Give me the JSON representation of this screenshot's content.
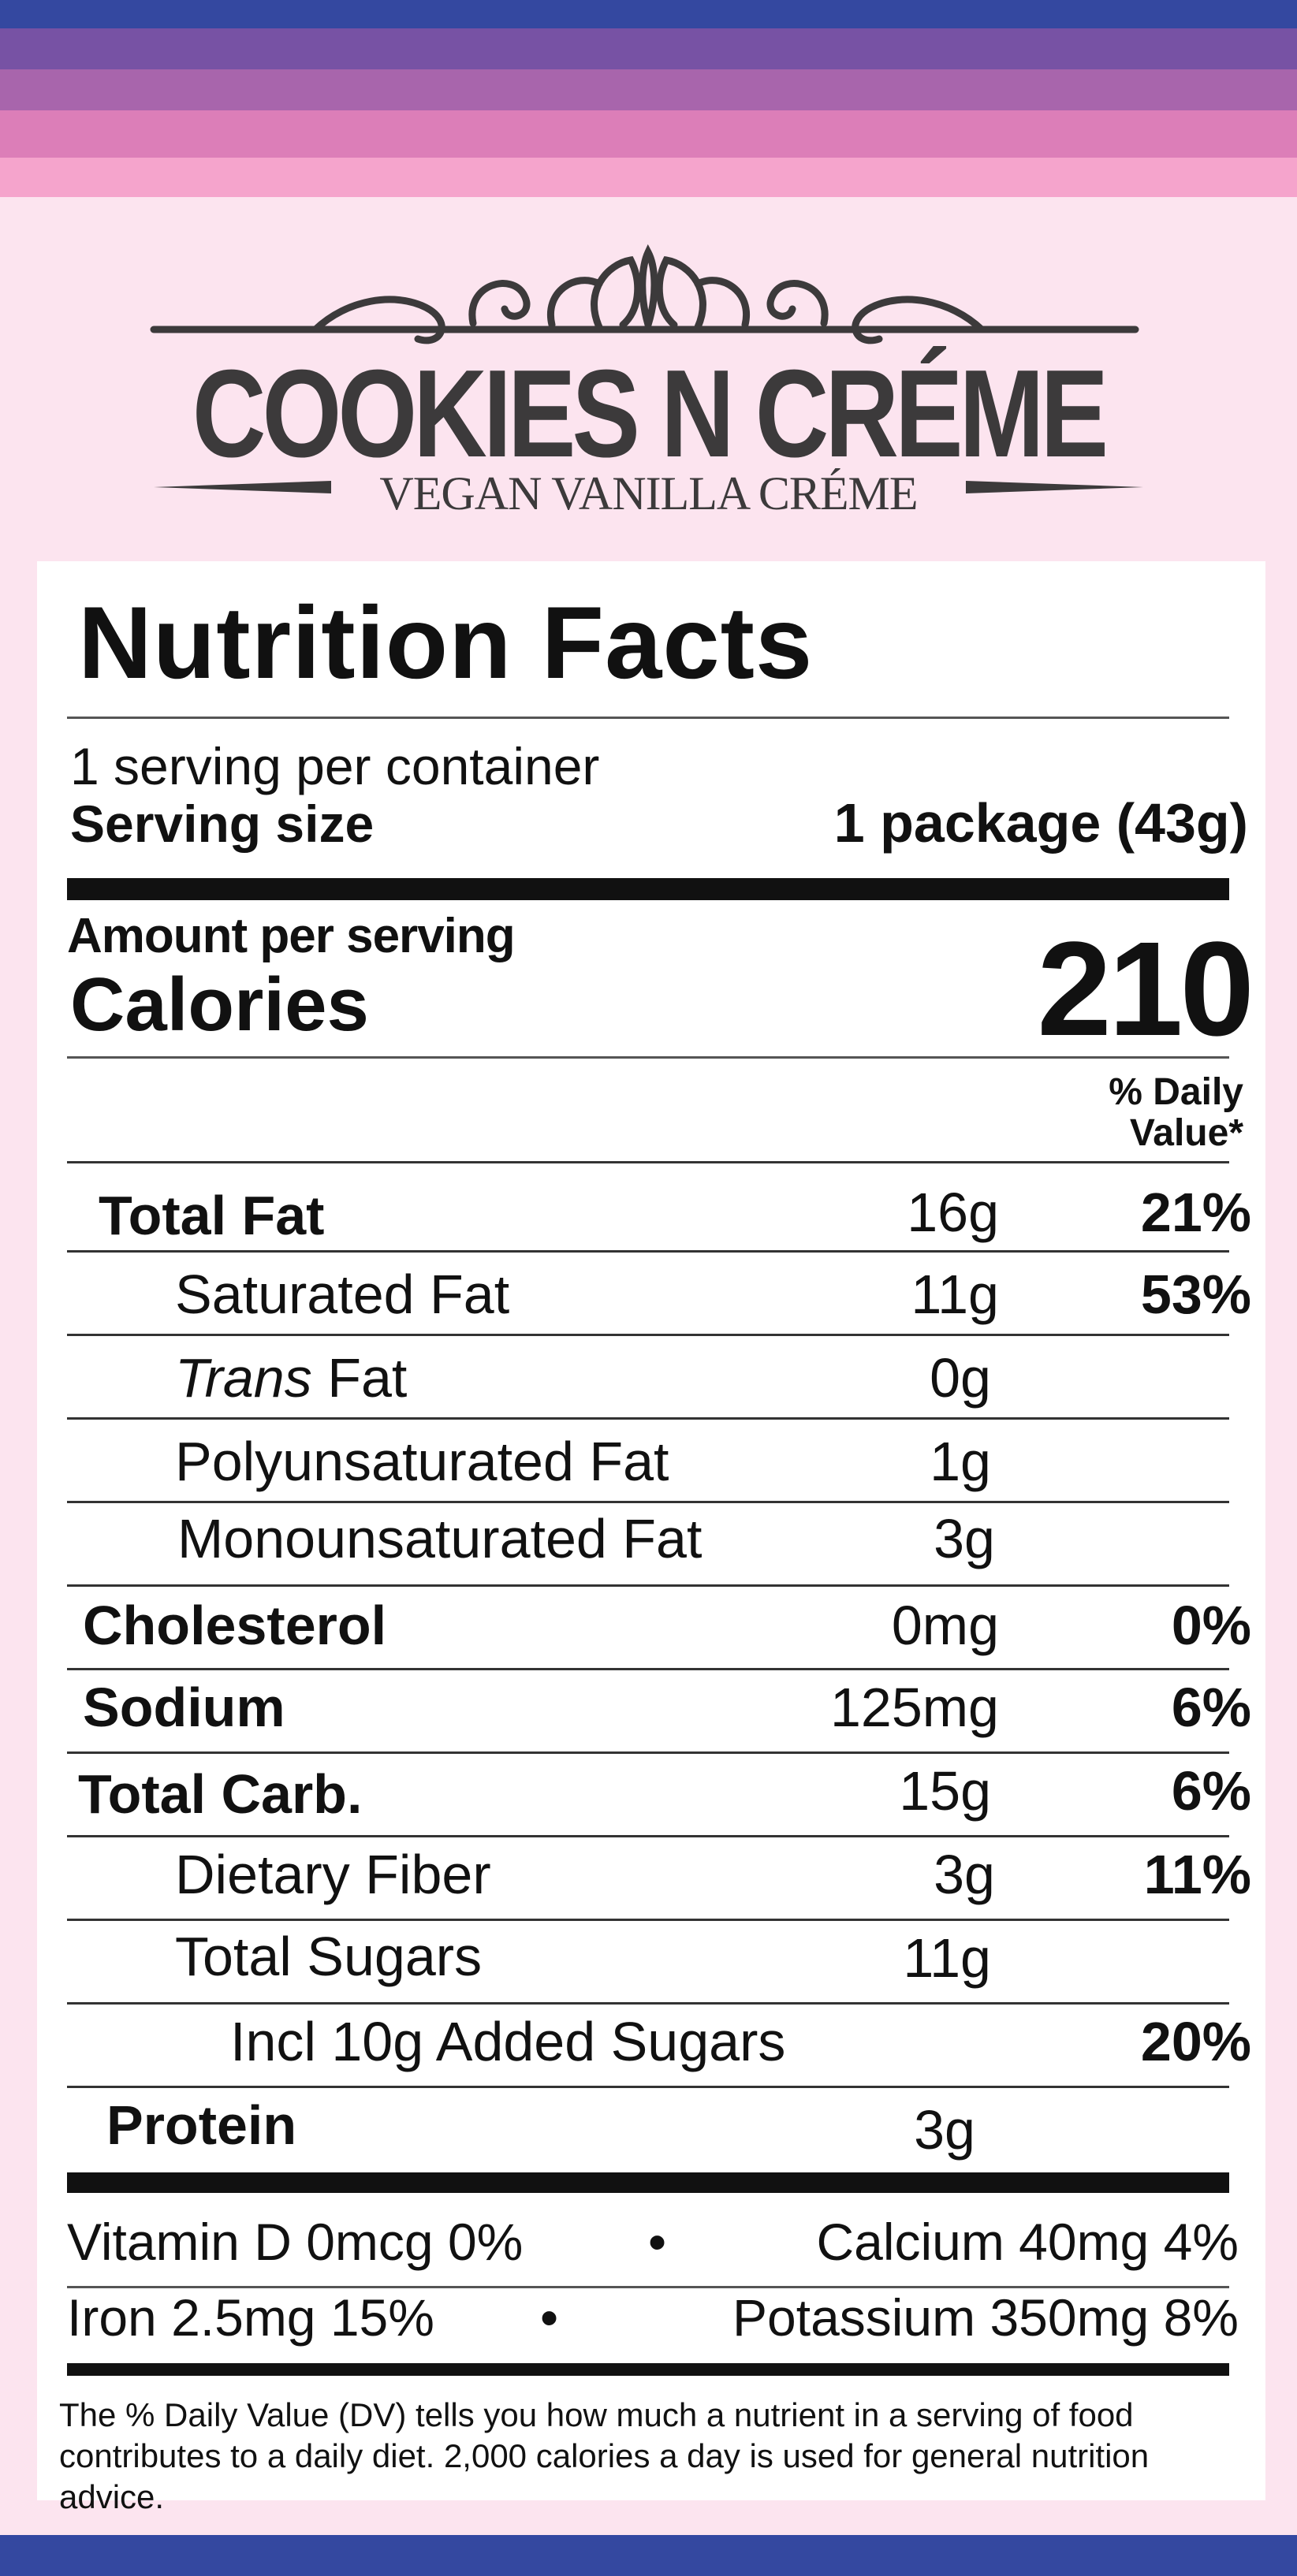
{
  "brand": {
    "title": "COOKIES N CRÉME",
    "subtitle": "VEGAN VANILLA CRÉME"
  },
  "label": {
    "heading": "Nutrition Facts",
    "servings_per_container": "1 serving per container",
    "serving_size_label": "Serving size",
    "serving_size_value": "1 package (43g)",
    "amount_per_serving": "Amount per serving",
    "calories_label": "Calories",
    "calories_value": "210",
    "dv_header": "% Daily Value*",
    "nutrients": [
      {
        "name": "Total Fat",
        "amount": "16g",
        "dv": "21%"
      },
      {
        "name": "Saturated Fat",
        "amount": "11g",
        "dv": "53%"
      },
      {
        "name_italic": "Trans",
        "name": " Fat",
        "amount": "0g",
        "dv": ""
      },
      {
        "name": "Polyunsaturated Fat",
        "amount": "1g",
        "dv": ""
      },
      {
        "name": "Monounsaturated Fat",
        "amount": "3g",
        "dv": ""
      },
      {
        "name": "Cholesterol",
        "amount": "0mg",
        "dv": "0%"
      },
      {
        "name": "Sodium",
        "amount": "125mg",
        "dv": "6%"
      },
      {
        "name": "Total Carb.",
        "amount": "15g",
        "dv": "6%"
      },
      {
        "name": "Dietary Fiber",
        "amount": "3g",
        "dv": "11%"
      },
      {
        "name": "Total Sugars",
        "amount": "11g",
        "dv": ""
      },
      {
        "name": "Incl 10g Added Sugars",
        "amount": "",
        "dv": "20%"
      },
      {
        "name": "Protein",
        "amount": "3g",
        "dv": ""
      }
    ],
    "vitamins": {
      "row1_left": "Vitamin D  0mcg  0%",
      "row1_sep": "•",
      "row1_right": "Calcium  40mg  4%",
      "row2_left": "Iron 2.5mg  15%",
      "row2_sep": "•",
      "row2_right": "Potassium 350mg  8%"
    },
    "footnote": "The % Daily Value (DV) tells you how much a nutrient in a serving of food contributes to a daily diet. 2,000 calories a day is used for general nutrition advice."
  },
  "colors": {
    "background": "#fce4ef",
    "navy": "#3448a0",
    "purple": "#7752a4",
    "mauve": "#a865ac",
    "pink": "#dc7eb8",
    "light_pink": "#f5a4cc",
    "brand_text": "#3c3a3b"
  }
}
